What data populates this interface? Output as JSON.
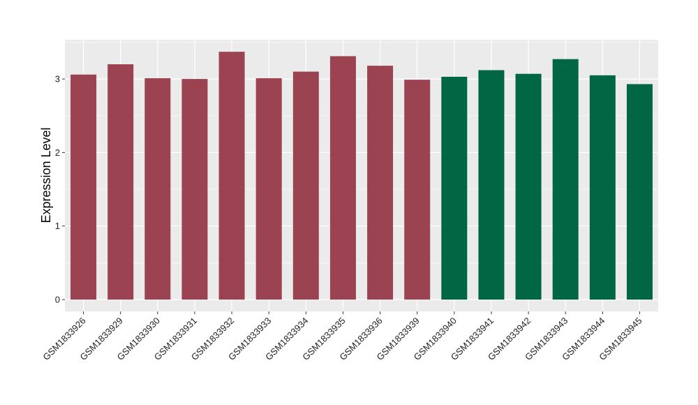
{
  "chart_data": {
    "type": "bar",
    "title": "",
    "xlabel": "",
    "ylabel": "Expression Level",
    "ylim": [
      0,
      3.55
    ],
    "yticks": [
      0,
      1,
      2,
      3
    ],
    "grid": true,
    "categories": [
      "GSM1833926",
      "GSM1833929",
      "GSM1833930",
      "GSM1833931",
      "GSM1833932",
      "GSM1833933",
      "GSM1833934",
      "GSM1833935",
      "GSM1833936",
      "GSM1833939",
      "GSM1833940",
      "GSM1833941",
      "GSM1833942",
      "GSM1833943",
      "GSM1833944",
      "GSM1833945"
    ],
    "values": [
      3.06,
      3.2,
      3.01,
      3.0,
      3.37,
      3.01,
      3.1,
      3.31,
      3.18,
      2.99,
      3.03,
      3.12,
      3.07,
      3.27,
      3.05,
      2.93
    ],
    "bar_colors": [
      "#9b4350",
      "#9b4350",
      "#9b4350",
      "#9b4350",
      "#9b4350",
      "#9b4350",
      "#9b4350",
      "#9b4350",
      "#9b4350",
      "#9b4350",
      "#006644",
      "#006644",
      "#006644",
      "#006644",
      "#006644",
      "#006644"
    ],
    "colors": {
      "panel_background": "#ebebeb",
      "grid": "#ffffff",
      "axis_text": "#222222"
    }
  }
}
